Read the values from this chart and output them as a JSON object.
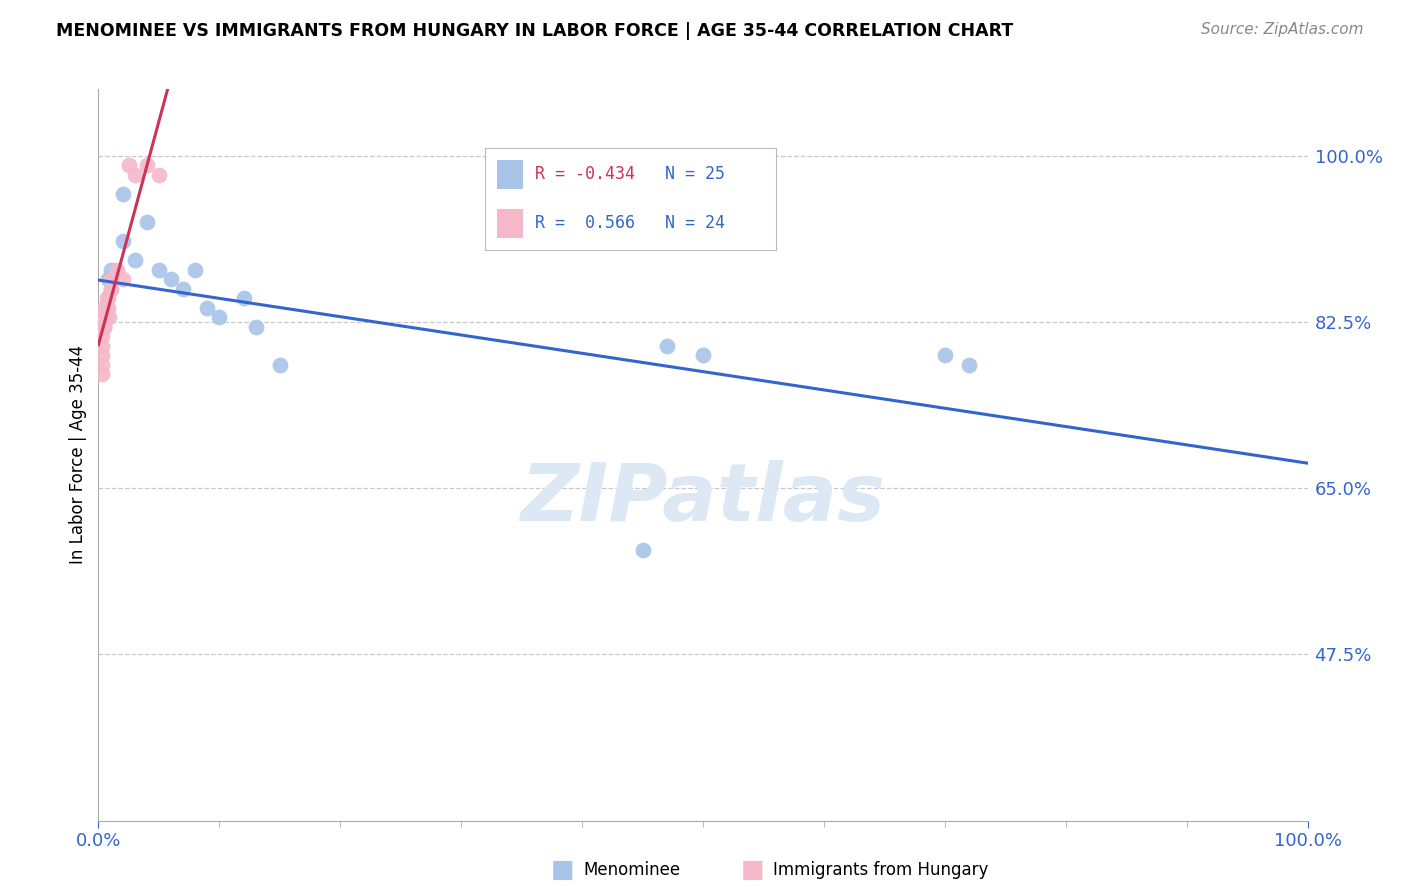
{
  "title": "MENOMINEE VS IMMIGRANTS FROM HUNGARY IN LABOR FORCE | AGE 35-44 CORRELATION CHART",
  "source": "Source: ZipAtlas.com",
  "ylabel": "In Labor Force | Age 35-44",
  "ytick_labels": [
    "100.0%",
    "82.5%",
    "65.0%",
    "47.5%"
  ],
  "ytick_values": [
    1.0,
    0.825,
    0.65,
    0.475
  ],
  "blue_r": -0.434,
  "blue_n": 25,
  "pink_r": 0.566,
  "pink_n": 24,
  "blue_scatter_color": "#a8c4e8",
  "pink_scatter_color": "#f5b8c8",
  "blue_line_color": "#3366cc",
  "pink_line_color": "#cc3355",
  "blue_r_text_color": "#cc3355",
  "blue_n_text_color": "#3366cc",
  "pink_r_text_color": "#3366cc",
  "pink_n_text_color": "#3366cc",
  "background_color": "#ffffff",
  "grid_color": "#c8c8c8",
  "watermark_color": "#dde8f5",
  "menominee_x": [
    0.005,
    0.005,
    0.005,
    0.007,
    0.008,
    0.01,
    0.01,
    0.02,
    0.02,
    0.03,
    0.04,
    0.05,
    0.06,
    0.07,
    0.08,
    0.09,
    0.1,
    0.12,
    0.13,
    0.15,
    0.45,
    0.47,
    0.5,
    0.7,
    0.72
  ],
  "menominee_y": [
    0.84,
    0.83,
    0.82,
    0.84,
    0.87,
    0.88,
    0.86,
    0.96,
    0.91,
    0.89,
    0.93,
    0.88,
    0.87,
    0.86,
    0.88,
    0.84,
    0.83,
    0.85,
    0.82,
    0.78,
    0.585,
    0.8,
    0.79,
    0.79,
    0.78
  ],
  "hungary_x": [
    0.003,
    0.003,
    0.003,
    0.003,
    0.003,
    0.003,
    0.003,
    0.004,
    0.005,
    0.005,
    0.005,
    0.006,
    0.007,
    0.008,
    0.008,
    0.009,
    0.01,
    0.01,
    0.015,
    0.02,
    0.025,
    0.03,
    0.04,
    0.05
  ],
  "hungary_y": [
    0.83,
    0.82,
    0.81,
    0.8,
    0.79,
    0.78,
    0.77,
    0.82,
    0.84,
    0.83,
    0.82,
    0.83,
    0.85,
    0.85,
    0.84,
    0.83,
    0.87,
    0.86,
    0.88,
    0.87,
    0.99,
    0.98,
    0.99,
    0.98
  ],
  "xlim": [
    0.0,
    1.0
  ],
  "ylim": [
    0.3,
    1.07
  ]
}
